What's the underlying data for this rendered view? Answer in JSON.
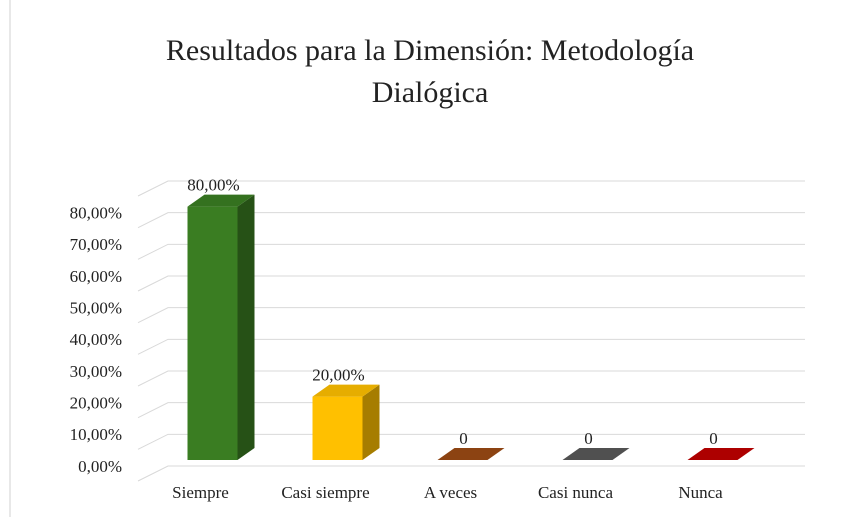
{
  "chart_data": {
    "type": "bar3d",
    "title": "Resultados para la Dimensión: Metodología Dialógica",
    "categories": [
      "Siempre",
      "Casi siempre",
      "A veces",
      "Casi nunca",
      "Nunca"
    ],
    "values": [
      80,
      20,
      0,
      0,
      0
    ],
    "value_labels": [
      "80,00%",
      "20,00%",
      "0",
      "0",
      "0"
    ],
    "colors": [
      "#3a7d22",
      "#ffc000",
      "#9c4a14",
      "#595959",
      "#c00000"
    ],
    "ylim": [
      0,
      90
    ],
    "yticks": [
      {
        "value": 0,
        "label": "0,00%"
      },
      {
        "value": 10,
        "label": "10,00%"
      },
      {
        "value": 20,
        "label": "20,00%"
      },
      {
        "value": 30,
        "label": "30,00%"
      },
      {
        "value": 40,
        "label": "40,00%"
      },
      {
        "value": 50,
        "label": "50,00%"
      },
      {
        "value": 60,
        "label": "60,00%"
      },
      {
        "value": 70,
        "label": "70,00%"
      },
      {
        "value": 80,
        "label": "80,00%"
      }
    ],
    "grid": true
  }
}
